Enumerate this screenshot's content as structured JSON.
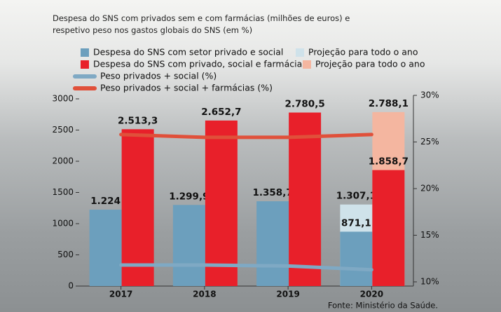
{
  "chart_data": {
    "type": "bar",
    "title": "Despesa do SNS com privados sem e com farmácias (milhões de euros) e respetivo peso nos gastos globais do SNS (em %)",
    "source": "Fonte: Ministério da Saúde.",
    "categories": [
      "2017",
      "2018",
      "2019",
      "2020"
    ],
    "series": [
      {
        "name": "Despesa do SNS com setor privado e social",
        "type": "bar",
        "color": "#6c9fbd",
        "values": [
          1224,
          1299.9,
          1358.7,
          871.1
        ],
        "value_labels": [
          "1.224",
          "1.299,9",
          "1.358,7",
          "871,1"
        ]
      },
      {
        "name": "Projeção para todo o ano",
        "type": "bar",
        "color": "#cfe2ea",
        "values": [
          null,
          null,
          null,
          1307.1
        ],
        "value_labels": [
          null,
          null,
          null,
          "1.307,1"
        ]
      },
      {
        "name": "Despesa do SNS com privado, social e farmácias",
        "type": "bar",
        "color": "#e8202a",
        "values": [
          2513.3,
          2652.7,
          2780.5,
          1858.7
        ],
        "value_labels": [
          "2.513,3",
          "2.652,7",
          "2.780,5",
          "1.858,7"
        ]
      },
      {
        "name": "Projeção para todo o ano",
        "type": "bar",
        "color": "#f4b6a0",
        "values": [
          null,
          null,
          null,
          2788.1
        ],
        "value_labels": [
          null,
          null,
          null,
          "2.788,1"
        ]
      },
      {
        "name": "Peso privados + social (%)",
        "type": "line",
        "axis": "y2",
        "color": "#7fa9c4",
        "values": [
          11.8,
          11.8,
          11.7,
          11.3
        ]
      },
      {
        "name": "Peso privados + social + farmácias (%)",
        "type": "line",
        "axis": "y2",
        "color": "#e0503a",
        "values": [
          25.8,
          25.5,
          25.5,
          25.8
        ]
      }
    ],
    "ylim": [
      0,
      3000
    ],
    "yticks": [
      0,
      500,
      1000,
      1500,
      2000,
      2500,
      3000
    ],
    "y2lim": [
      10,
      30
    ],
    "y2ticks": [
      {
        "value": 10,
        "label": "10%"
      },
      {
        "value": 15,
        "label": "15%"
      },
      {
        "value": 20,
        "label": "20%"
      },
      {
        "value": 25,
        "label": "25%"
      },
      {
        "value": 30,
        "label": "30%"
      }
    ]
  }
}
